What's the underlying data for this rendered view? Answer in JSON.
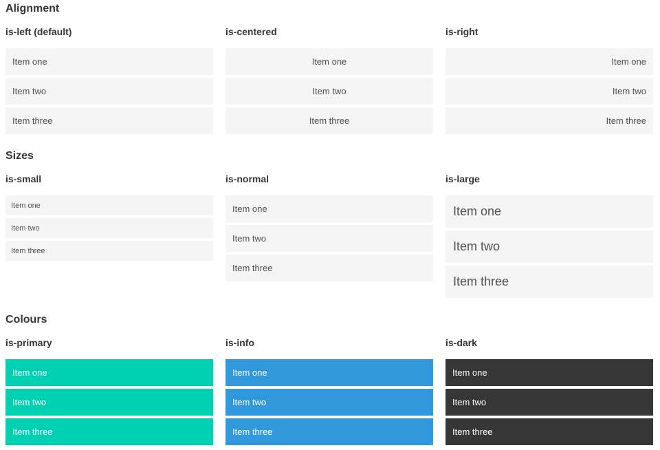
{
  "theme": {
    "primary": "#00d1b2",
    "info": "#3298dc",
    "dark": "#363636",
    "item_bg": "#f5f5f5",
    "item_text": "#4f4f4f",
    "heading_color": "#363636"
  },
  "sections": [
    {
      "title": "Alignment",
      "groups": [
        {
          "label": "is-left (default)",
          "items": [
            "Item one",
            "Item two",
            "Item three"
          ]
        },
        {
          "label": "is-centered",
          "items": [
            "Item one",
            "Item two",
            "Item three"
          ]
        },
        {
          "label": "is-right",
          "items": [
            "Item one",
            "Item two",
            "Item three"
          ]
        }
      ]
    },
    {
      "title": "Sizes",
      "groups": [
        {
          "label": "is-small",
          "items": [
            "Item one",
            "Item two",
            "Item three"
          ]
        },
        {
          "label": "is-normal",
          "items": [
            "Item one",
            "Item two",
            "Item three"
          ]
        },
        {
          "label": "is-large",
          "items": [
            "Item one",
            "Item two",
            "Item three"
          ]
        }
      ]
    },
    {
      "title": "Colours",
      "groups": [
        {
          "label": "is-primary",
          "items": [
            "Item one",
            "Item two",
            "Item three"
          ]
        },
        {
          "label": "is-info",
          "items": [
            "Item one",
            "Item two",
            "Item three"
          ]
        },
        {
          "label": "is-dark",
          "items": [
            "Item one",
            "Item two",
            "Item three"
          ]
        }
      ]
    }
  ]
}
